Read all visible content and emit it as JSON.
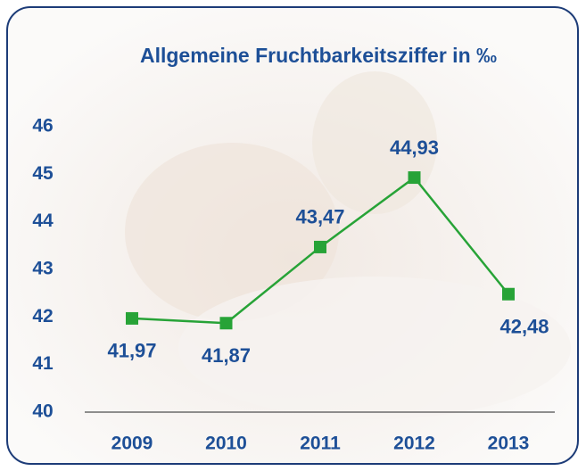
{
  "chart_data": {
    "type": "line",
    "title": "Allgemeine Fruchtbarkeitsziffer in ‰",
    "categories": [
      "2009",
      "2010",
      "2011",
      "2012",
      "2013"
    ],
    "series": [
      {
        "color": "#27a337",
        "values": [
          41.97,
          41.87,
          43.47,
          44.93,
          42.48
        ],
        "value_labels": [
          "41,97",
          "41,87",
          "43,47",
          "44,93",
          "42,48"
        ]
      }
    ],
    "ylim": [
      40,
      46
    ],
    "yticks": [
      40,
      41,
      42,
      43,
      44,
      45,
      46
    ]
  }
}
